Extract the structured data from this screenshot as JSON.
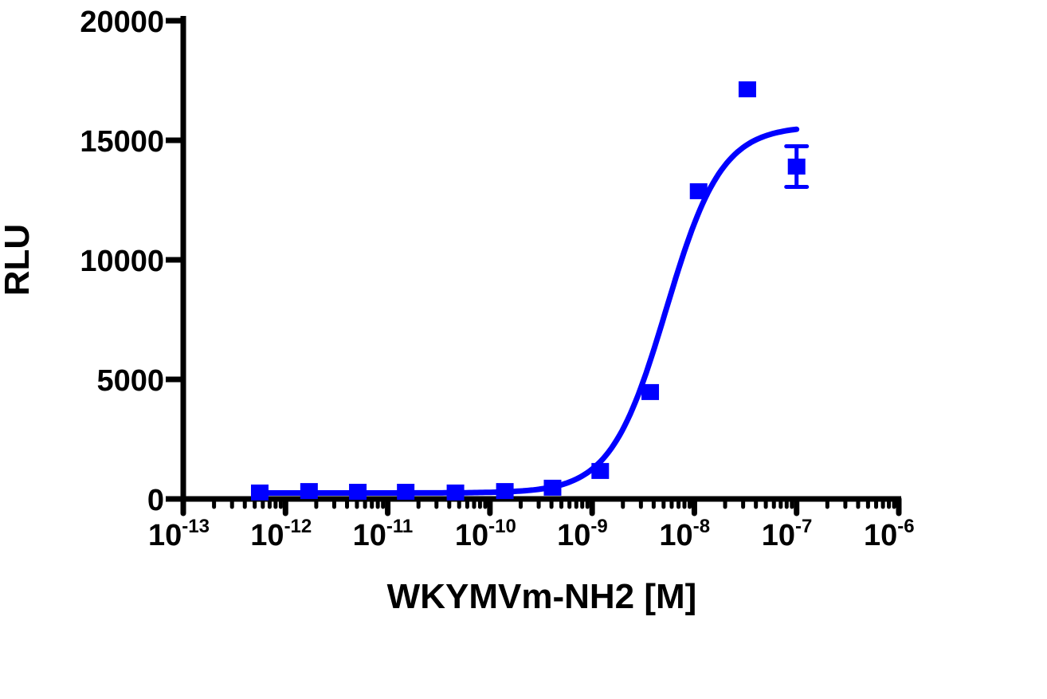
{
  "chart_data": {
    "type": "scatter",
    "xlabel": "WKYMVm-NH2 [M]",
    "ylabel": "RLU",
    "xscale": "log",
    "xlim": [
      1e-13,
      1e-06
    ],
    "ylim": [
      0,
      20000
    ],
    "x_ticks": [
      "-13",
      "-12",
      "-11",
      "-10",
      "-9",
      "-8",
      "-7",
      "-6"
    ],
    "x_tick_base": "10",
    "y_ticks": [
      "0",
      "5000",
      "10000",
      "15000",
      "20000"
    ],
    "grid": false,
    "color": "#0000ff",
    "marker": "square",
    "points": [
      {
        "x": 5.6e-13,
        "y": 270
      },
      {
        "x": 1.7e-12,
        "y": 330
      },
      {
        "x": 5.1e-12,
        "y": 300
      },
      {
        "x": 1.5e-11,
        "y": 300
      },
      {
        "x": 4.6e-11,
        "y": 270
      },
      {
        "x": 1.4e-10,
        "y": 330
      },
      {
        "x": 4.1e-10,
        "y": 470
      },
      {
        "x": 1.2e-09,
        "y": 1170
      },
      {
        "x": 3.7e-09,
        "y": 4470
      },
      {
        "x": 1.1e-08,
        "y": 12870
      },
      {
        "x": 3.3e-08,
        "y": 17130
      },
      {
        "x": 1e-07,
        "y": 13900,
        "error": 850
      }
    ],
    "fit": {
      "model": "sigmoidal dose-response",
      "bottom": 250,
      "top": 15600,
      "ec50": 5.3e-09,
      "hill": 1.6,
      "x_range": [
        5.6e-13,
        1e-07
      ]
    }
  }
}
